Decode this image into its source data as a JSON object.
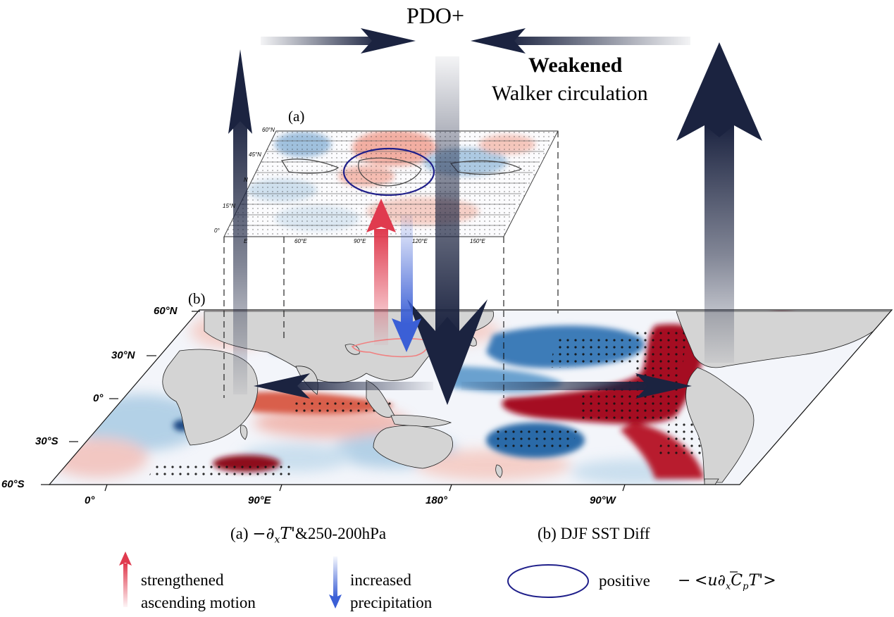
{
  "title": "PDO+",
  "walker": {
    "strong": "Weakened",
    "rest": "Walker circulation"
  },
  "panel_a": {
    "tag": "(a)",
    "lat_ticks": [
      "60°N",
      "45°N",
      "N",
      "15°N",
      "0°"
    ],
    "lon_ticks": [
      "E",
      "60°E",
      "90°E",
      "120°E",
      "150°E"
    ]
  },
  "panel_b": {
    "tag": "(b)",
    "lat_ticks": [
      "60°N",
      "30°N",
      "0°",
      "30°S",
      "60°S"
    ],
    "lon_ticks": [
      "0°",
      "90°E",
      "180°",
      "90°W"
    ]
  },
  "captions": {
    "a_prefix": "(a)",
    "a_minus": "−",
    "a_partial": "∂",
    "a_sub": "x",
    "a_T": "T'",
    "a_suffix": "&250-200hPa",
    "b": "(b) DJF SST Diff"
  },
  "legend": {
    "red_line1": "strengthened",
    "red_line2": "ascending motion",
    "blue_line1": "increased",
    "blue_line2": "precipitation",
    "ellipse_label": "positive",
    "ellipse_formula_minus": "−",
    "ellipse_formula_lt": "<",
    "ellipse_formula_u": "u",
    "ellipse_formula_partial": "∂",
    "ellipse_formula_x": "x",
    "ellipse_formula_C": "C",
    "ellipse_formula_p": "p",
    "ellipse_formula_T": "T'",
    "ellipse_formula_gt": ">"
  },
  "colors": {
    "navy": "#1b2340",
    "ellipse": "#1f1f8a",
    "red_arrow": "#e03a4e",
    "blue_arrow": "#3b5fd6",
    "sst_warm": "#b2182b",
    "sst_cool": "#2166ac",
    "land": "#d4d4d4"
  }
}
